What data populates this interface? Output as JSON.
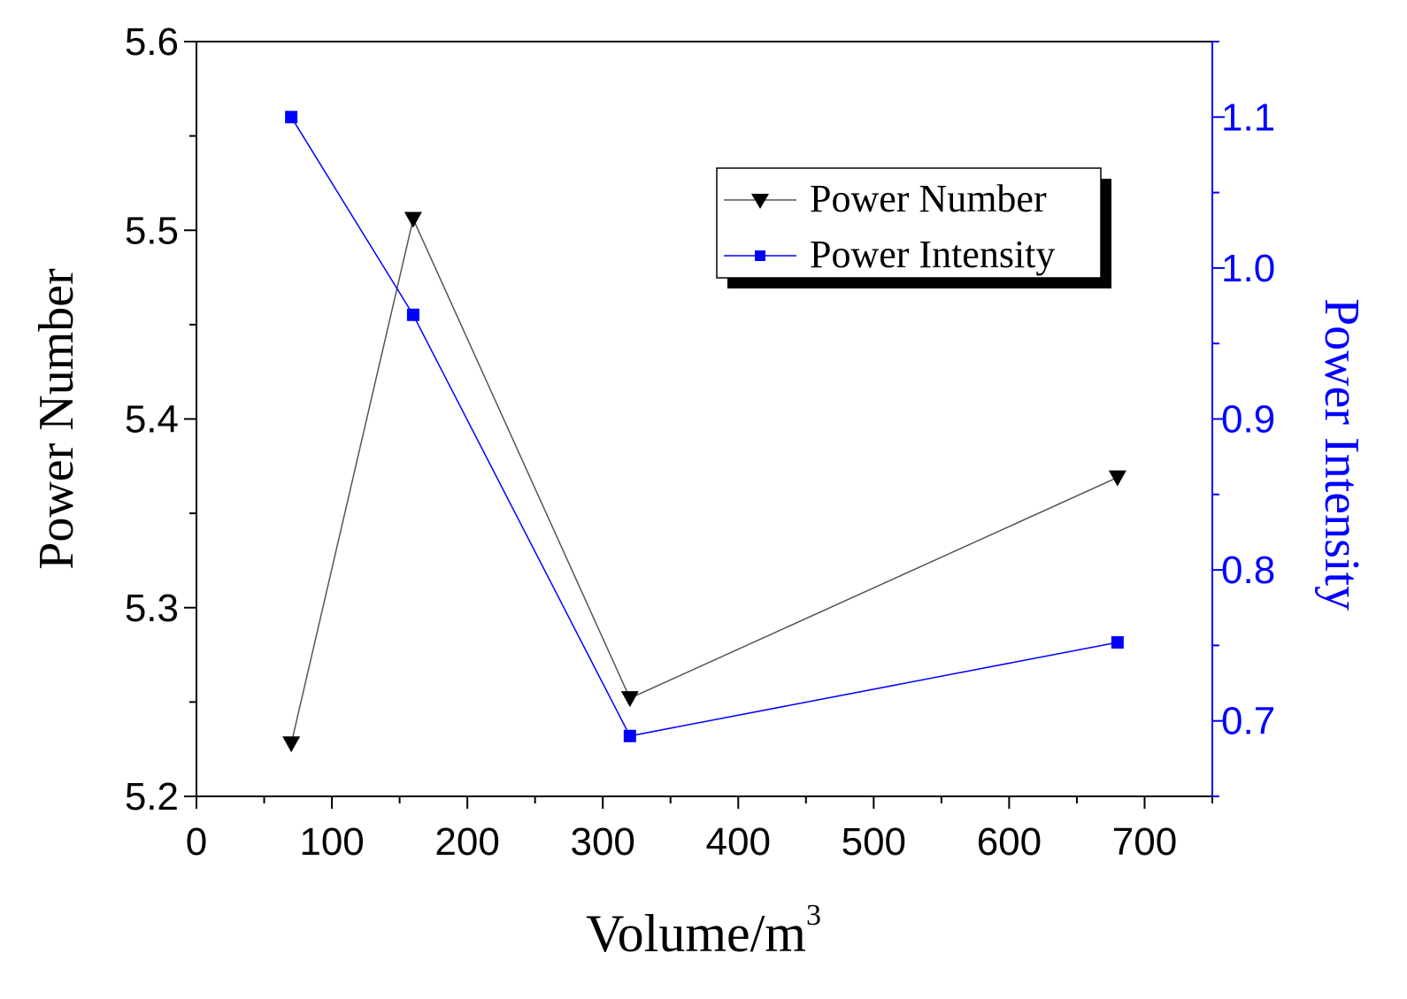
{
  "chart_data": {
    "type": "line",
    "title": "",
    "xlabel": "Volume/m",
    "xlabel_superscript": "3",
    "ylabel": "Power Number",
    "y2label": "Power Intensity",
    "xlim": [
      0,
      750
    ],
    "ylim": [
      5.2,
      5.6
    ],
    "y2lim": [
      0.65,
      1.15
    ],
    "xticks": [
      0,
      100,
      200,
      300,
      400,
      500,
      600,
      700
    ],
    "yticks": [
      5.2,
      5.3,
      5.4,
      5.5,
      5.6
    ],
    "y2ticks": [
      0.7,
      0.8,
      0.9,
      1.0,
      1.1
    ],
    "xtick_labels": [
      "0",
      "100",
      "200",
      "300",
      "400",
      "500",
      "600",
      "700"
    ],
    "ytick_labels": [
      "5.2",
      "5.3",
      "5.4",
      "5.5",
      "5.6"
    ],
    "y2tick_labels": [
      "0.7",
      "0.8",
      "0.9",
      "1.0",
      "1.1"
    ],
    "grid": false,
    "legend_position": "top-right",
    "series": [
      {
        "name": "Power Number",
        "axis": "left",
        "color": "#000000",
        "line_color": "#555555",
        "marker": "triangle-down",
        "x": [
          70,
          160,
          320,
          680
        ],
        "values": [
          5.228,
          5.506,
          5.252,
          5.369
        ]
      },
      {
        "name": "Power Intensity",
        "axis": "right",
        "color": "#0000ff",
        "line_color": "#0000ff",
        "marker": "square",
        "x": [
          70,
          160,
          320,
          680
        ],
        "values": [
          1.1,
          0.969,
          0.69,
          0.752
        ]
      }
    ]
  }
}
